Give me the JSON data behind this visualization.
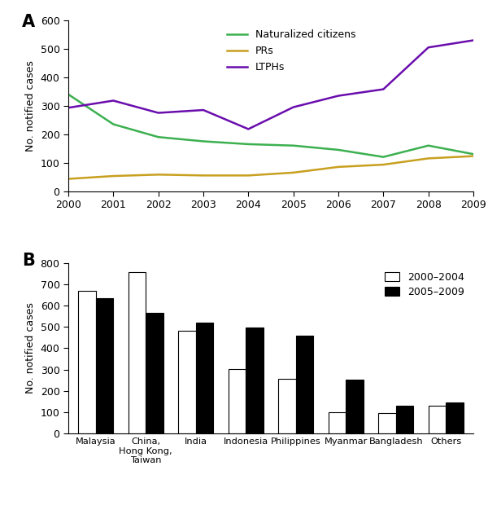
{
  "panel_A": {
    "years": [
      2000,
      2001,
      2002,
      2003,
      2004,
      2005,
      2006,
      2007,
      2008,
      2009
    ],
    "naturalized_citizens": [
      340,
      235,
      190,
      175,
      165,
      160,
      145,
      120,
      160,
      130
    ],
    "PRs": [
      43,
      53,
      58,
      55,
      55,
      65,
      85,
      93,
      115,
      123
    ],
    "LTPHs": [
      293,
      318,
      275,
      285,
      218,
      295,
      335,
      358,
      505,
      530
    ],
    "colors": {
      "naturalized_citizens": "#3cb050",
      "PRs": "#c8a020",
      "LTPHs": "#6a0dad"
    },
    "legend_labels": [
      "Naturalized citizens",
      "PRs",
      "LTPHs"
    ],
    "ylabel": "No. notified cases",
    "ylim": [
      0,
      600
    ],
    "yticks": [
      0,
      100,
      200,
      300,
      400,
      500,
      600
    ]
  },
  "panel_B": {
    "categories": [
      "Malaysia",
      "China,\nHong Kong,\nTaiwan",
      "India",
      "Indonesia",
      "Philippines",
      "Myanmar",
      "Bangladesh",
      "Others"
    ],
    "values_2000_2004": [
      668,
      758,
      480,
      302,
      255,
      100,
      97,
      130
    ],
    "values_2005_2009": [
      633,
      565,
      518,
      497,
      458,
      252,
      130,
      145
    ],
    "colors": {
      "2000_2004": "#ffffff",
      "2005_2009": "#000000"
    },
    "legend_labels": [
      "2000–2004",
      "2005–2009"
    ],
    "ylabel": "No. notified cases",
    "ylim": [
      0,
      800
    ],
    "yticks": [
      0,
      100,
      200,
      300,
      400,
      500,
      600,
      700,
      800
    ]
  },
  "background_color": "#ffffff",
  "label_A": "A",
  "label_B": "B"
}
